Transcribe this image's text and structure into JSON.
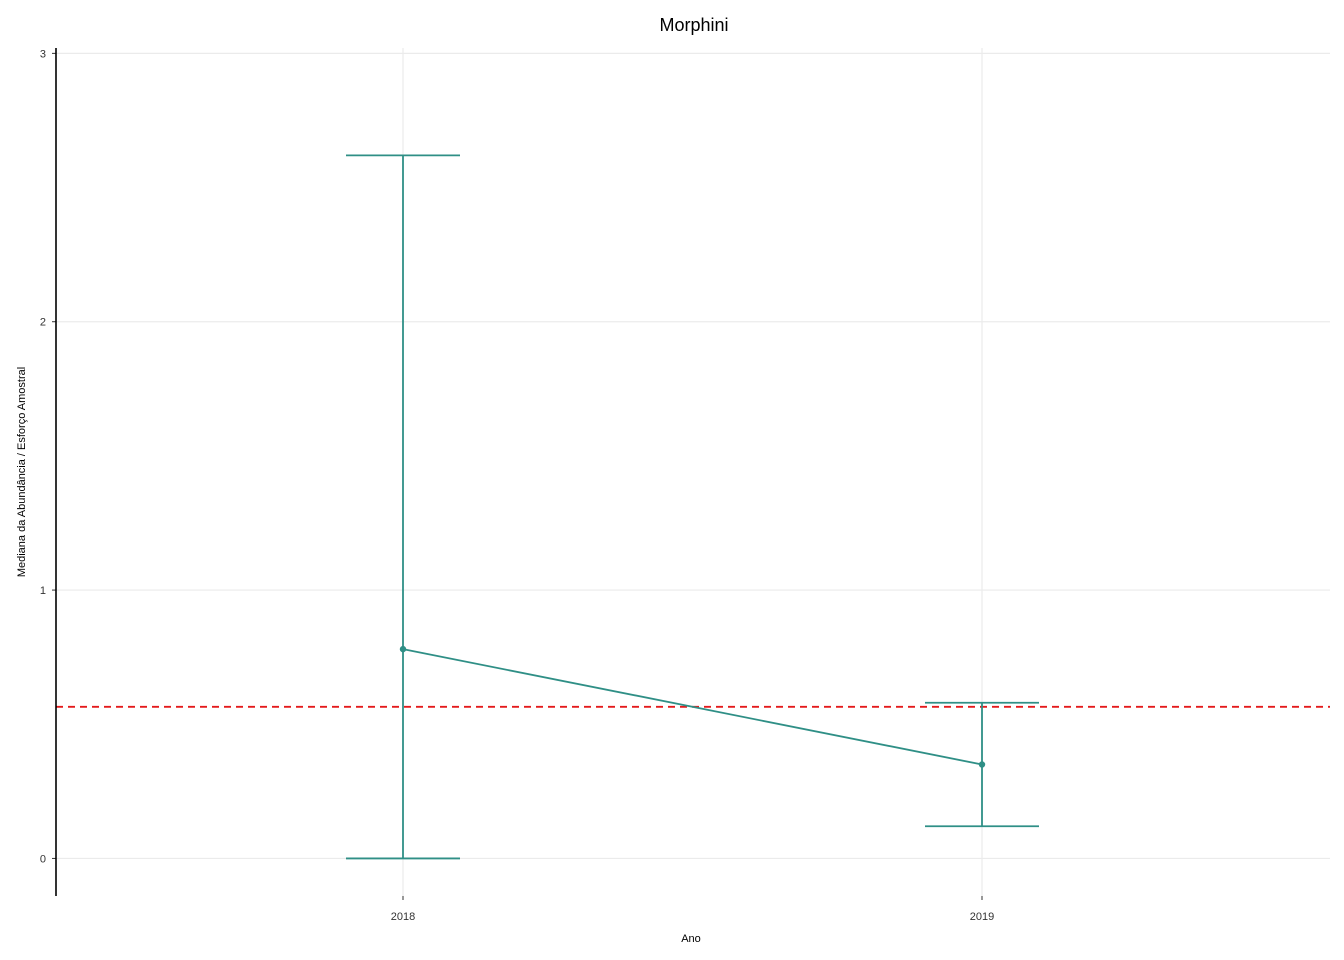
{
  "chart_data": {
    "type": "line",
    "title": "Morphini",
    "xlabel": "Ano",
    "ylabel": "Mediana da Abundância / Esforço Amostral",
    "categories": [
      "2018",
      "2019"
    ],
    "y_ticks": [
      "0",
      "1",
      "2",
      "3"
    ],
    "ylim": [
      -0.14,
      3.02
    ],
    "grid": true,
    "legend": "none",
    "series": [
      {
        "values": [
          0.78,
          0.35
        ],
        "error_low": [
          0.0,
          0.12
        ],
        "error_high": [
          2.62,
          0.58
        ]
      }
    ],
    "reference_line": {
      "y": 0.565,
      "style": "dashed"
    },
    "colors": {
      "series": "#2f8f86",
      "reference": "#e41a1c",
      "grid": "#ebebeb",
      "axis": "#000000"
    }
  }
}
